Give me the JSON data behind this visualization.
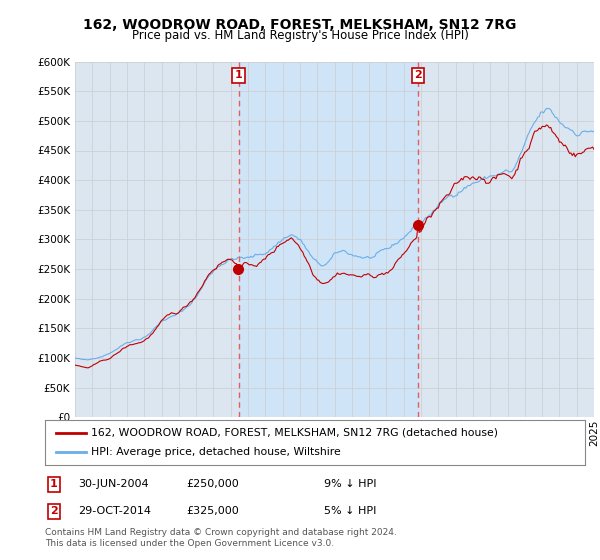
{
  "title": "162, WOODROW ROAD, FOREST, MELKSHAM, SN12 7RG",
  "subtitle": "Price paid vs. HM Land Registry's House Price Index (HPI)",
  "legend_line1": "162, WOODROW ROAD, FOREST, MELKSHAM, SN12 7RG (detached house)",
  "legend_line2": "HPI: Average price, detached house, Wiltshire",
  "sale1_date": "30-JUN-2004",
  "sale1_price": 250000,
  "sale1_label": "9% ↓ HPI",
  "sale2_date": "29-OCT-2014",
  "sale2_price": 325000,
  "sale2_label": "5% ↓ HPI",
  "footnote": "Contains HM Land Registry data © Crown copyright and database right 2024.\nThis data is licensed under the Open Government Licence v3.0.",
  "hpi_color": "#6aaee8",
  "price_color": "#c00000",
  "vline_color": "#e06060",
  "background_color": "#dce6f1",
  "shade_color": "#d0e4f7",
  "grid_color": "#bbbbbb",
  "ylim": [
    0,
    600000
  ],
  "yticks": [
    0,
    50000,
    100000,
    150000,
    200000,
    250000,
    300000,
    350000,
    400000,
    450000,
    500000,
    550000,
    600000
  ],
  "sale1_x": 2004.458,
  "sale2_x": 2014.833
}
